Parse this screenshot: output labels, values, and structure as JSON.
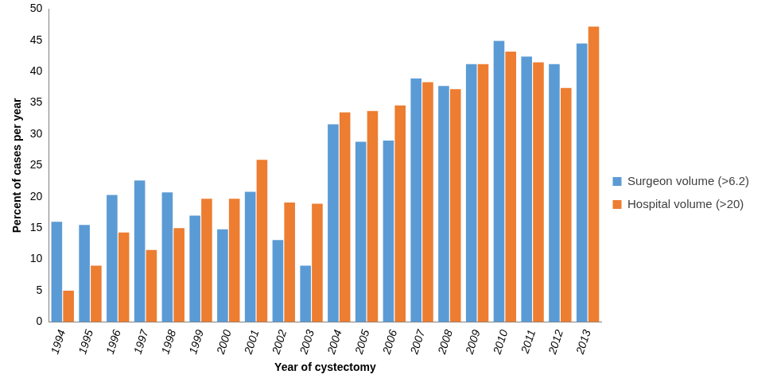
{
  "chart_data": {
    "type": "bar",
    "x_label": "Year of cystectomy",
    "y_label": "Percent of cases per year",
    "categories": [
      "1994",
      "1995",
      "1996",
      "1997",
      "1998",
      "1999",
      "2000",
      "2001",
      "2002",
      "2003",
      "2004",
      "2005",
      "2006",
      "2007",
      "2008",
      "2009",
      "2010",
      "2011",
      "2012",
      "2013"
    ],
    "series": [
      {
        "name": "Surgeon volume (>6.2)",
        "color": "#5b9bd5",
        "values": [
          16.0,
          15.5,
          20.3,
          22.6,
          20.7,
          17.0,
          14.8,
          20.8,
          13.1,
          9.0,
          31.6,
          28.8,
          29.0,
          38.9,
          37.7,
          41.2,
          44.9,
          42.4,
          41.2,
          44.5
        ]
      },
      {
        "name": "Hospital volume (>20)",
        "color": "#ed7d31",
        "values": [
          5.0,
          9.0,
          14.3,
          11.5,
          15.0,
          19.7,
          19.7,
          25.9,
          19.1,
          18.9,
          33.5,
          33.7,
          34.6,
          38.3,
          37.2,
          41.2,
          43.2,
          41.5,
          37.4,
          47.2
        ]
      }
    ],
    "ylim": [
      0,
      50
    ],
    "yticks": [
      0,
      5,
      10,
      15,
      20,
      25,
      30,
      35,
      40,
      45,
      50
    ],
    "grid": false,
    "legend": "right"
  }
}
